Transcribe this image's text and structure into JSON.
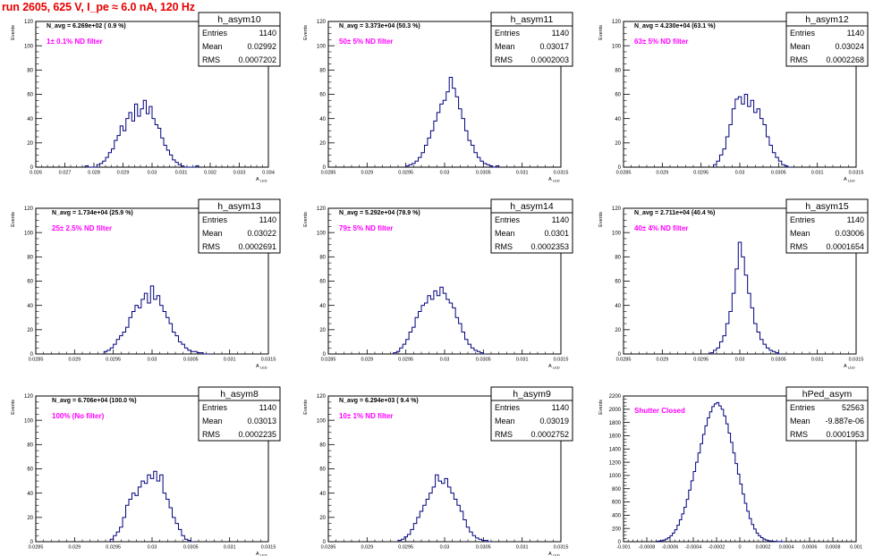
{
  "run_title": "run 2605,   625 V, I_pe ≈ 6.0 nA, 120 Hz",
  "chart_data": [
    {
      "type": "bar",
      "name": "h_asym10",
      "stats": {
        "entries_label": "Entries",
        "entries": "1140",
        "mean_label": "Mean",
        "mean": "0.02992",
        "rms_label": "RMS",
        "rms": "0.0007202"
      },
      "navg": "N_avg = 6.269e+02 ( 0.9 %)",
      "filter": "1± 0.1% ND filter",
      "ylabel": "Events",
      "xlabel": "A_LED",
      "xlim": [
        0.026,
        0.034
      ],
      "ylim": [
        0,
        120
      ],
      "yticks": [
        0,
        20,
        40,
        60,
        80,
        100,
        120
      ],
      "xticks": [
        0.026,
        0.027,
        0.028,
        0.029,
        0.03,
        0.031,
        0.032,
        0.033,
        0.034
      ],
      "xtick_labels": [
        "0.026",
        "0.027",
        "0.028",
        "0.029",
        "0.03",
        "0.031",
        "0.032",
        "0.033",
        "0.034"
      ],
      "bin_start": 0.0277,
      "bin_width": 0.0001,
      "values": [
        1,
        0,
        0,
        0,
        2,
        3,
        5,
        8,
        12,
        15,
        22,
        26,
        34,
        30,
        40,
        45,
        38,
        52,
        42,
        48,
        55,
        44,
        50,
        40,
        35,
        32,
        24,
        18,
        14,
        10,
        6,
        4,
        2,
        1,
        0,
        0,
        0,
        0,
        1
      ]
    },
    {
      "type": "bar",
      "name": "h_asym11",
      "stats": {
        "entries_label": "Entries",
        "entries": "1140",
        "mean_label": "Mean",
        "mean": "0.03017",
        "rms_label": "RMS",
        "rms": "0.0002003"
      },
      "navg": "N_avg = 3.373e+04 (50.3 %)",
      "filter": "50± 5% ND filter",
      "ylabel": "Events",
      "xlabel": "A_LED",
      "xlim": [
        0.0285,
        0.0315
      ],
      "ylim": [
        0,
        120
      ],
      "yticks": [
        0,
        20,
        40,
        60,
        80,
        100,
        120
      ],
      "xticks": [
        0.0285,
        0.029,
        0.0295,
        0.03,
        0.0305,
        0.031,
        0.0315
      ],
      "xtick_labels": [
        "0.0285",
        "0.029",
        "0.0295",
        "0.03",
        "0.0305",
        "0.031",
        "0.0315"
      ],
      "bin_start": 0.0295,
      "bin_width": 4e-05,
      "values": [
        1,
        2,
        3,
        5,
        8,
        12,
        18,
        24,
        30,
        38,
        45,
        52,
        55,
        62,
        74,
        65,
        58,
        48,
        40,
        30,
        22,
        18,
        12,
        8,
        5,
        3,
        2,
        1,
        0,
        1
      ]
    },
    {
      "type": "bar",
      "name": "h_asym12",
      "stats": {
        "entries_label": "Entries",
        "entries": "1140",
        "mean_label": "Mean",
        "mean": "0.03024",
        "rms_label": "RMS",
        "rms": "0.0002268"
      },
      "navg": "N_avg = 4.230e+04 (63.1 %)",
      "filter": "63± 5% ND filter",
      "ylabel": "Events",
      "xlabel": "A_LED",
      "xlim": [
        0.0285,
        0.0315
      ],
      "ylim": [
        0,
        120
      ],
      "yticks": [
        0,
        20,
        40,
        60,
        80,
        100,
        120
      ],
      "xticks": [
        0.0285,
        0.029,
        0.0295,
        0.03,
        0.0305,
        0.031,
        0.0315
      ],
      "xtick_labels": [
        "0.0285",
        "0.029",
        "0.0295",
        "0.03",
        "0.0305",
        "0.031",
        "0.0315"
      ],
      "bin_start": 0.02966,
      "bin_width": 4e-05,
      "values": [
        2,
        5,
        10,
        15,
        25,
        35,
        48,
        56,
        58,
        52,
        60,
        50,
        55,
        45,
        48,
        40,
        35,
        25,
        18,
        12,
        8,
        5,
        2,
        1,
        0
      ]
    },
    {
      "type": "bar",
      "name": "h_asym13",
      "stats": {
        "entries_label": "Entries",
        "entries": "1140",
        "mean_label": "Mean",
        "mean": "0.03022",
        "rms_label": "RMS",
        "rms": "0.0002691"
      },
      "navg": "N_avg = 1.734e+04 (25.9 %)",
      "filter": "25± 2.5% ND filter",
      "ylabel": "Events",
      "xlabel": "A_LED",
      "xlim": [
        0.0285,
        0.0315
      ],
      "ylim": [
        0,
        120
      ],
      "yticks": [
        0,
        20,
        40,
        60,
        80,
        100,
        120
      ],
      "xticks": [
        0.0285,
        0.029,
        0.0295,
        0.03,
        0.0305,
        0.031,
        0.0315
      ],
      "xtick_labels": [
        "0.0285",
        "0.029",
        "0.0295",
        "0.03",
        "0.0305",
        "0.031",
        "0.0315"
      ],
      "bin_start": 0.02938,
      "bin_width": 4e-05,
      "values": [
        2,
        3,
        5,
        8,
        12,
        15,
        18,
        22,
        30,
        35,
        40,
        38,
        45,
        50,
        42,
        56,
        45,
        48,
        40,
        35,
        30,
        25,
        18,
        15,
        10,
        8,
        5,
        3,
        2,
        2,
        1,
        1,
        0,
        0
      ]
    },
    {
      "type": "bar",
      "name": "h_asym14",
      "stats": {
        "entries_label": "Entries",
        "entries": "1140",
        "mean_label": "Mean",
        "mean": "0.0301",
        "rms_label": "RMS",
        "rms": "0.0002353"
      },
      "navg": "N_avg = 5.292e+04 (78.9 %)",
      "filter": "79± 5% ND filter",
      "ylabel": "Events",
      "xlabel": "A_LED",
      "xlim": [
        0.0285,
        0.0315
      ],
      "ylim": [
        0,
        120
      ],
      "yticks": [
        0,
        20,
        40,
        60,
        80,
        100,
        120
      ],
      "xticks": [
        0.0285,
        0.029,
        0.0295,
        0.03,
        0.0305,
        0.031,
        0.0315
      ],
      "xtick_labels": [
        "0.0285",
        "0.029",
        "0.0295",
        "0.03",
        "0.0305",
        "0.031",
        "0.0315"
      ],
      "bin_start": 0.02934,
      "bin_width": 4e-05,
      "values": [
        1,
        2,
        5,
        8,
        12,
        18,
        22,
        30,
        35,
        40,
        42,
        48,
        45,
        52,
        48,
        55,
        50,
        45,
        42,
        38,
        30,
        25,
        18,
        12,
        8,
        5,
        3,
        2,
        1,
        0
      ]
    },
    {
      "type": "bar",
      "name": "h_asym15",
      "stats": {
        "entries_label": "Entries",
        "entries": "1140",
        "mean_label": "Mean",
        "mean": "0.03006",
        "rms_label": "RMS",
        "rms": "0.0001654"
      },
      "navg": "N_avg = 2.711e+04 (40.4 %)",
      "filter": "40± 4% ND filter",
      "ylabel": "Events",
      "xlabel": "A_LED",
      "xlim": [
        0.0285,
        0.0315
      ],
      "ylim": [
        0,
        120
      ],
      "yticks": [
        0,
        20,
        40,
        60,
        80,
        100,
        120
      ],
      "xticks": [
        0.0285,
        0.029,
        0.0295,
        0.03,
        0.0305,
        0.031,
        0.0315
      ],
      "xtick_labels": [
        "0.0285",
        "0.029",
        "0.0295",
        "0.03",
        "0.0305",
        "0.031",
        "0.0315"
      ],
      "bin_start": 0.02962,
      "bin_width": 4e-05,
      "values": [
        1,
        3,
        5,
        10,
        15,
        25,
        35,
        50,
        70,
        92,
        80,
        65,
        50,
        38,
        25,
        18,
        12,
        8,
        5,
        3,
        2,
        1,
        0
      ]
    },
    {
      "type": "bar",
      "name": "h_asym8",
      "stats": {
        "entries_label": "Entries",
        "entries": "1140",
        "mean_label": "Mean",
        "mean": "0.03013",
        "rms_label": "RMS",
        "rms": "0.0002235"
      },
      "navg": "N_avg = 6.706e+04 (100.0 %)",
      "filter": "100% (No filter)",
      "ylabel": "Events",
      "xlabel": "A_LED",
      "xlim": [
        0.0285,
        0.0315
      ],
      "ylim": [
        0,
        120
      ],
      "yticks": [
        0,
        20,
        40,
        60,
        80,
        100,
        120
      ],
      "xticks": [
        0.0285,
        0.029,
        0.0295,
        0.03,
        0.0305,
        0.031,
        0.0315
      ],
      "xtick_labels": [
        "0.0285",
        "0.029",
        "0.0295",
        "0.03",
        "0.0305",
        "0.031",
        "0.0315"
      ],
      "bin_start": 0.02946,
      "bin_width": 4e-05,
      "values": [
        2,
        5,
        8,
        12,
        20,
        30,
        35,
        40,
        38,
        45,
        50,
        48,
        55,
        52,
        58,
        50,
        55,
        40,
        35,
        28,
        20,
        15,
        10,
        5,
        2,
        1,
        0
      ]
    },
    {
      "type": "bar",
      "name": "h_asym9",
      "stats": {
        "entries_label": "Entries",
        "entries": "1140",
        "mean_label": "Mean",
        "mean": "0.03019",
        "rms_label": "RMS",
        "rms": "0.0002752"
      },
      "navg": "N_avg = 6.294e+03 ( 9.4 %)",
      "filter": "10± 1% ND filter",
      "ylabel": "Events",
      "xlabel": "A_LED",
      "xlim": [
        0.0285,
        0.0315
      ],
      "ylim": [
        0,
        120
      ],
      "yticks": [
        0,
        20,
        40,
        60,
        80,
        100,
        120
      ],
      "xticks": [
        0.0285,
        0.029,
        0.0295,
        0.03,
        0.0305,
        0.031,
        0.0315
      ],
      "xtick_labels": [
        "0.0285",
        "0.029",
        "0.0295",
        "0.03",
        "0.0305",
        "0.031",
        "0.0315"
      ],
      "bin_start": 0.0294,
      "bin_width": 4e-05,
      "values": [
        1,
        2,
        4,
        6,
        10,
        15,
        20,
        25,
        30,
        35,
        40,
        45,
        55,
        50,
        48,
        52,
        45,
        40,
        35,
        30,
        25,
        18,
        12,
        8,
        5,
        3,
        2,
        1,
        1,
        0
      ]
    },
    {
      "type": "bar",
      "name": "hPed_asym",
      "stats": {
        "entries_label": "Entries",
        "entries": "52563",
        "mean_label": "Mean",
        "mean": "-9.887e-06",
        "rms_label": "RMS",
        "rms": "0.0001953"
      },
      "navg": "",
      "filter": "Shutter Closed",
      "ylabel": "Events",
      "xlabel": "",
      "xlim": [
        -0.001,
        0.001
      ],
      "ylim": [
        0,
        2200
      ],
      "yticks": [
        0,
        200,
        400,
        600,
        800,
        1000,
        1200,
        1400,
        1600,
        1800,
        2000,
        2200
      ],
      "xticks": [
        -0.001,
        -0.0008,
        -0.0006,
        -0.0004,
        -0.0002,
        0,
        0.0002,
        0.0004,
        0.0006,
        0.0008,
        0.001
      ],
      "xtick_labels": [
        "-0.001",
        "-0.0008",
        "-0.0006",
        "-0.0004",
        "-0.0002",
        "0",
        "0.0002",
        "0.0004",
        "0.0006",
        "0.0008",
        "0.001"
      ],
      "bin_start": -0.00072,
      "bin_width": 2e-05,
      "values": [
        5,
        10,
        15,
        25,
        40,
        60,
        90,
        130,
        180,
        250,
        330,
        420,
        520,
        640,
        780,
        920,
        1060,
        1200,
        1340,
        1480,
        1620,
        1750,
        1870,
        1960,
        2040,
        2080,
        2100,
        2050,
        2000,
        1900,
        1780,
        1640,
        1500,
        1340,
        1180,
        1020,
        870,
        720,
        580,
        460,
        350,
        260,
        190,
        130,
        90,
        60,
        40,
        25,
        15,
        10,
        6,
        3,
        2,
        1,
        0
      ]
    }
  ]
}
